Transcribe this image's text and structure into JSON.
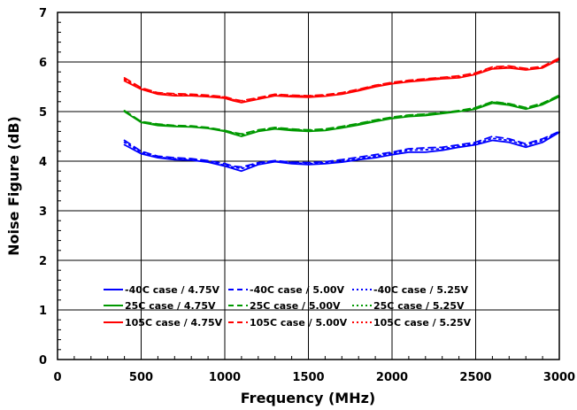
{
  "chart_data": {
    "type": "line",
    "xlabel": "Frequency (MHz)",
    "ylabel": "Noise Figure (dB)",
    "xlim": [
      0,
      3000
    ],
    "ylim": [
      0,
      7
    ],
    "xticks": [
      0,
      500,
      1000,
      1500,
      2000,
      2500,
      3000
    ],
    "yticks": [
      0,
      1,
      2,
      3,
      4,
      5,
      6,
      7
    ],
    "grid": true,
    "legend_position": "bottom-center",
    "x": [
      400,
      500,
      600,
      700,
      800,
      900,
      1000,
      1050,
      1100,
      1200,
      1300,
      1400,
      1500,
      1600,
      1700,
      1800,
      1900,
      2000,
      2100,
      2200,
      2300,
      2400,
      2500,
      2600,
      2700,
      2800,
      2900,
      3000
    ],
    "series": [
      {
        "name": "-40C case / 4.75V",
        "color": "#0000ff",
        "dash": "solid",
        "values": [
          4.33,
          4.15,
          4.07,
          4.03,
          4.02,
          3.98,
          3.9,
          3.85,
          3.8,
          3.93,
          3.99,
          3.95,
          3.93,
          3.95,
          3.98,
          4.03,
          4.07,
          4.13,
          4.18,
          4.18,
          4.22,
          4.28,
          4.33,
          4.42,
          4.38,
          4.28,
          4.38,
          4.58
        ]
      },
      {
        "name": "-40C case / 5.00V",
        "color": "#0000ff",
        "dash": "dashed",
        "values": [
          4.42,
          4.2,
          4.1,
          4.07,
          4.05,
          4.01,
          3.95,
          3.9,
          3.88,
          3.97,
          4.01,
          3.98,
          3.97,
          3.99,
          4.03,
          4.08,
          4.13,
          4.18,
          4.25,
          4.27,
          4.28,
          4.33,
          4.38,
          4.5,
          4.45,
          4.35,
          4.45,
          4.6
        ]
      },
      {
        "name": "-40C case / 5.25V",
        "color": "#0000ff",
        "dash": "dotted",
        "values": [
          4.38,
          4.18,
          4.08,
          4.05,
          4.03,
          3.99,
          3.92,
          3.88,
          3.85,
          3.95,
          4.0,
          3.97,
          3.95,
          3.97,
          4.0,
          4.05,
          4.1,
          4.16,
          4.22,
          4.23,
          4.25,
          4.3,
          4.35,
          4.46,
          4.42,
          4.32,
          4.42,
          4.59
        ]
      },
      {
        "name": "25C case / 4.75V",
        "color": "#009900",
        "dash": "solid",
        "values": [
          5.0,
          4.78,
          4.72,
          4.7,
          4.69,
          4.66,
          4.6,
          4.55,
          4.5,
          4.6,
          4.65,
          4.62,
          4.6,
          4.62,
          4.67,
          4.73,
          4.8,
          4.86,
          4.9,
          4.92,
          4.96,
          5.0,
          5.05,
          5.17,
          5.13,
          5.05,
          5.14,
          5.3
        ]
      },
      {
        "name": "25C case / 5.00V",
        "color": "#009900",
        "dash": "dashed",
        "values": [
          5.02,
          4.8,
          4.75,
          4.72,
          4.71,
          4.68,
          4.62,
          4.58,
          4.55,
          4.63,
          4.68,
          4.65,
          4.63,
          4.65,
          4.7,
          4.76,
          4.83,
          4.89,
          4.93,
          4.95,
          4.98,
          5.02,
          5.08,
          5.2,
          5.16,
          5.08,
          5.17,
          5.33
        ]
      },
      {
        "name": "25C case / 5.25V",
        "color": "#009900",
        "dash": "dotted",
        "values": [
          5.01,
          4.79,
          4.74,
          4.71,
          4.7,
          4.67,
          4.61,
          4.57,
          4.53,
          4.62,
          4.67,
          4.64,
          4.62,
          4.64,
          4.69,
          4.75,
          4.82,
          4.88,
          4.92,
          4.94,
          4.97,
          5.01,
          5.07,
          5.19,
          5.15,
          5.07,
          5.16,
          5.32
        ]
      },
      {
        "name": "105C case / 4.75V",
        "color": "#ff0000",
        "dash": "solid",
        "values": [
          5.62,
          5.45,
          5.35,
          5.32,
          5.32,
          5.3,
          5.27,
          5.22,
          5.18,
          5.25,
          5.32,
          5.3,
          5.29,
          5.31,
          5.35,
          5.42,
          5.5,
          5.56,
          5.6,
          5.63,
          5.66,
          5.68,
          5.75,
          5.86,
          5.88,
          5.84,
          5.88,
          6.05
        ]
      },
      {
        "name": "105C case / 5.00V",
        "color": "#ff0000",
        "dash": "dashed",
        "values": [
          5.68,
          5.48,
          5.38,
          5.36,
          5.35,
          5.33,
          5.3,
          5.25,
          5.22,
          5.28,
          5.35,
          5.33,
          5.32,
          5.34,
          5.38,
          5.45,
          5.53,
          5.59,
          5.63,
          5.66,
          5.69,
          5.72,
          5.78,
          5.9,
          5.92,
          5.87,
          5.91,
          6.08
        ]
      },
      {
        "name": "105C case / 5.25V",
        "color": "#ff0000",
        "dash": "dotted",
        "values": [
          5.65,
          5.47,
          5.37,
          5.34,
          5.34,
          5.32,
          5.29,
          5.24,
          5.2,
          5.27,
          5.34,
          5.32,
          5.31,
          5.33,
          5.37,
          5.44,
          5.52,
          5.58,
          5.62,
          5.65,
          5.68,
          5.7,
          5.77,
          5.88,
          5.9,
          5.86,
          5.9,
          6.07
        ]
      }
    ]
  }
}
